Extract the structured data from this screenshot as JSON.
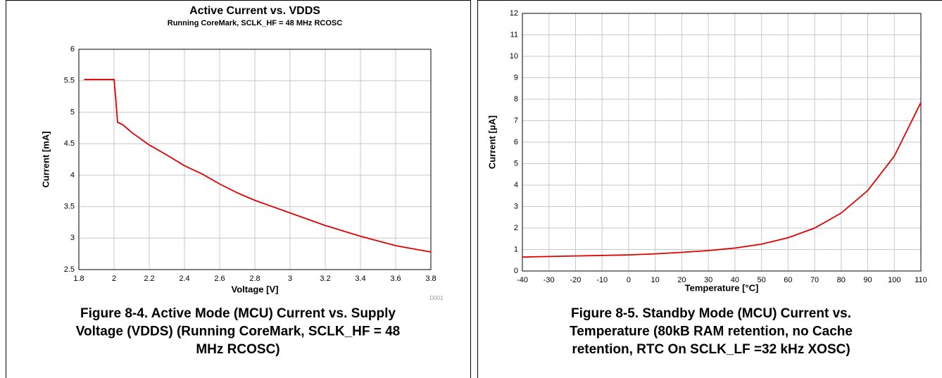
{
  "chart_data": [
    {
      "type": "line",
      "title": "Active Current vs. VDDS",
      "subtitle": "Running CoreMark, SCLK_HF = 48 MHz RCOSC",
      "xlabel": "Voltage [V]",
      "ylabel": "Current [mA]",
      "annotation": "D001",
      "x": [
        1.83,
        2.0,
        2.01,
        2.02,
        2.05,
        2.1,
        2.2,
        2.3,
        2.4,
        2.5,
        2.6,
        2.7,
        2.8,
        2.9,
        3.0,
        3.2,
        3.4,
        3.6,
        3.8
      ],
      "series": [
        {
          "name": "Current",
          "color": "#e00000",
          "values": [
            5.52,
            5.52,
            5.2,
            4.84,
            4.8,
            4.68,
            4.48,
            4.32,
            4.15,
            4.02,
            3.86,
            3.72,
            3.6,
            3.5,
            3.4,
            3.2,
            3.03,
            2.88,
            2.78
          ]
        }
      ],
      "xlim": [
        1.8,
        3.8
      ],
      "xticks": [
        1.8,
        2,
        2.2,
        2.4,
        2.6,
        2.8,
        3,
        3.2,
        3.4,
        3.6,
        3.8
      ],
      "ylim": [
        2.5,
        6
      ],
      "yticks": [
        2.5,
        3,
        3.5,
        4,
        4.5,
        5,
        5.5,
        6
      ],
      "grid": true,
      "caption": [
        "Figure 8-4. Active Mode (MCU) Current vs. Supply",
        "Voltage (VDDS) (Running CoreMark, SCLK_HF = 48",
        "MHz RCOSC)"
      ]
    },
    {
      "type": "line",
      "xlabel": "Temperature [°C]",
      "ylabel": "Current [µA]",
      "x": [
        -40,
        -20,
        0,
        10,
        20,
        30,
        40,
        50,
        60,
        70,
        80,
        90,
        100,
        110
      ],
      "series": [
        {
          "name": "Current",
          "color": "#e00000",
          "values": [
            0.65,
            0.7,
            0.75,
            0.8,
            0.87,
            0.95,
            1.07,
            1.25,
            1.55,
            2.0,
            2.7,
            3.75,
            5.35,
            7.85
          ]
        }
      ],
      "xlim": [
        -40,
        110
      ],
      "xticks": [
        -40,
        -30,
        -20,
        -10,
        0,
        10,
        20,
        30,
        40,
        50,
        60,
        70,
        80,
        90,
        100,
        110
      ],
      "ylim": [
        0,
        12
      ],
      "yticks": [
        0,
        1,
        2,
        3,
        4,
        5,
        6,
        7,
        8,
        9,
        10,
        11,
        12
      ],
      "grid": true,
      "caption": [
        "Figure 8-5. Standby Mode (MCU) Current vs.",
        "Temperature (80kB RAM retention, no Cache",
        "retention, RTC On SCLK_LF =32 kHz XOSC)"
      ]
    }
  ]
}
